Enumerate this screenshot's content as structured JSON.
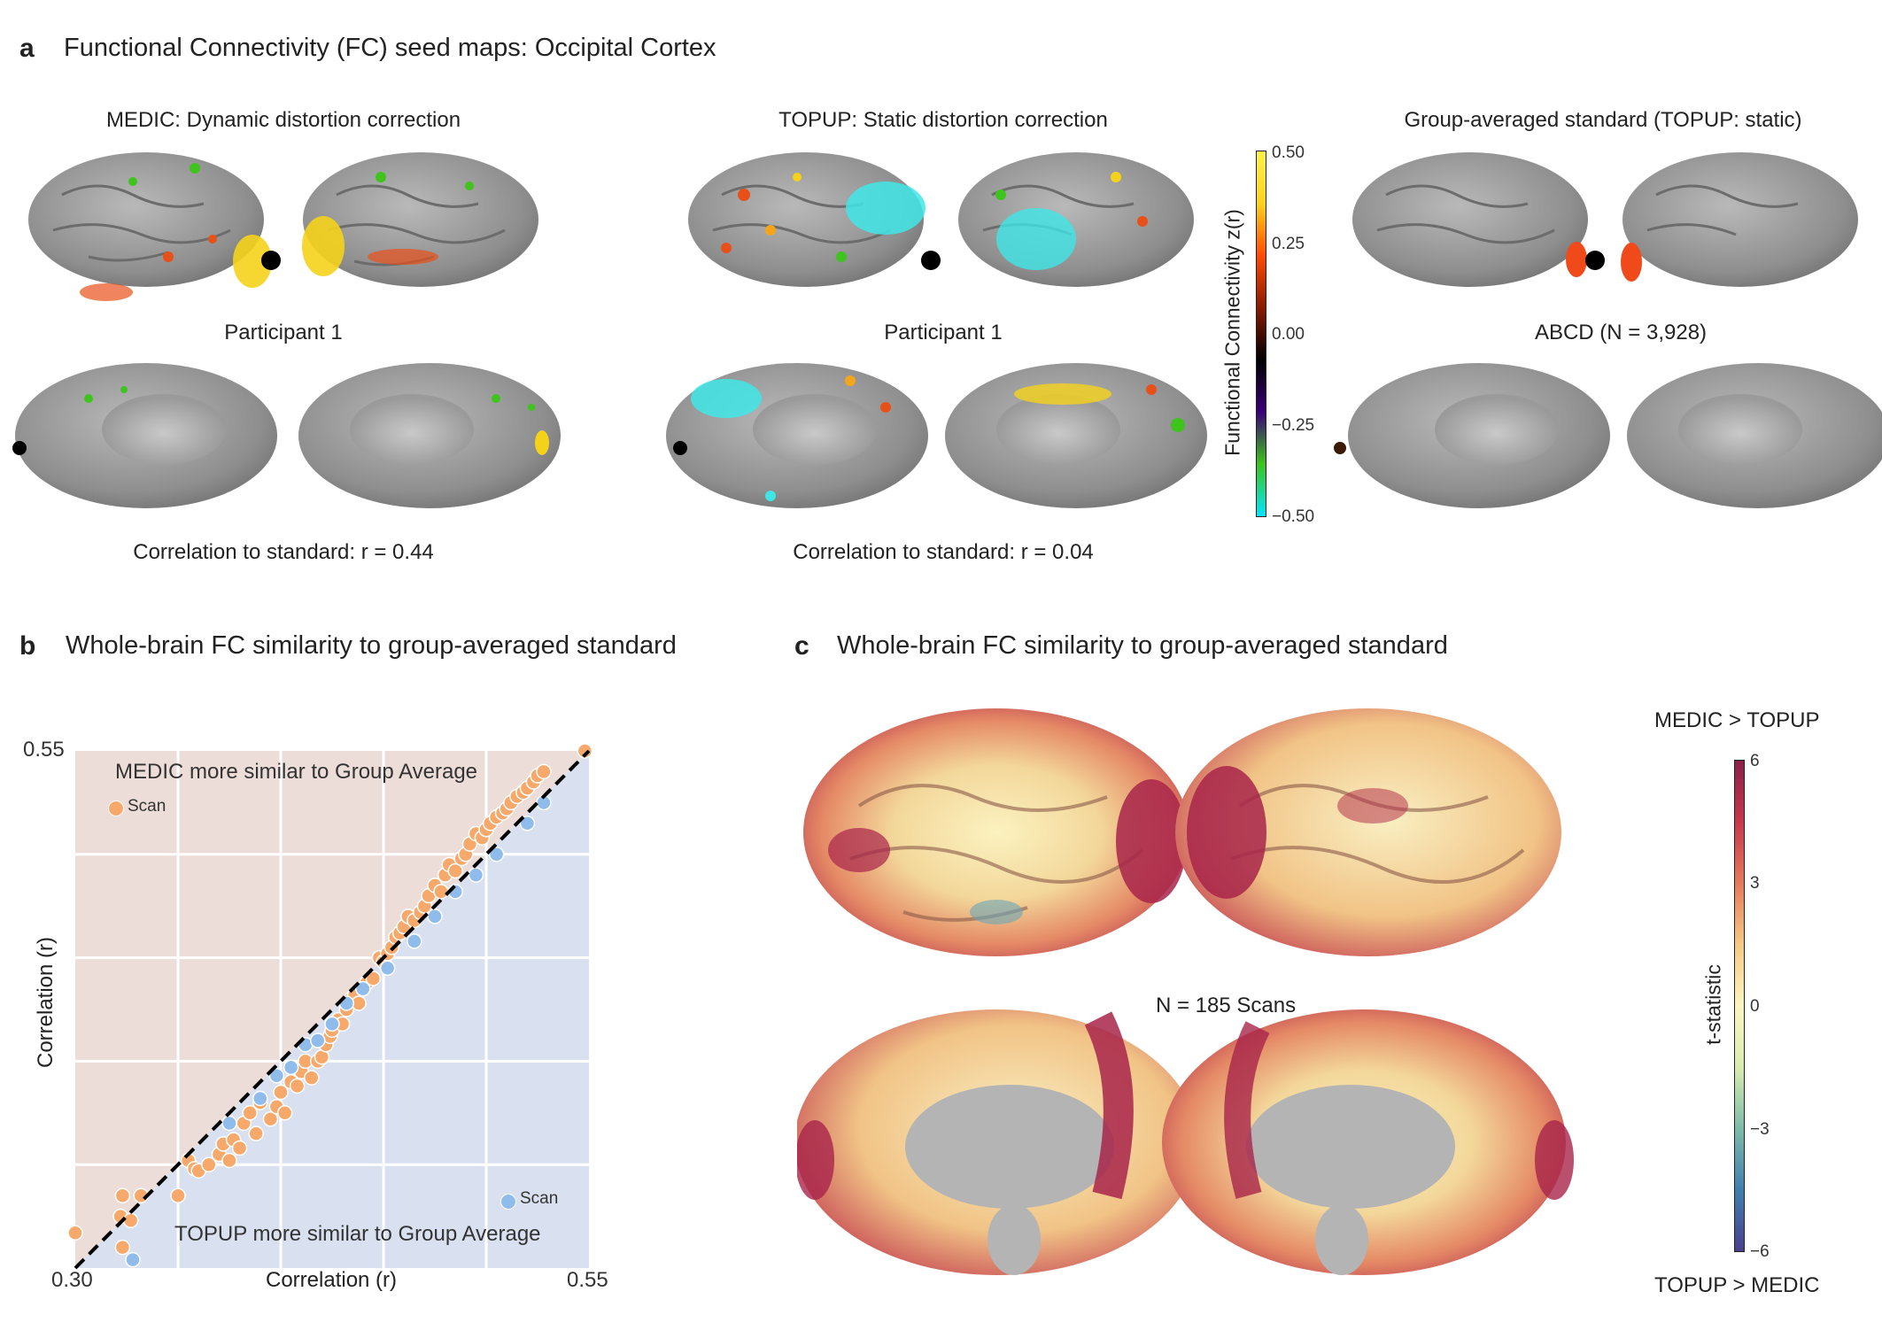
{
  "panel_a": {
    "letter": "a",
    "title": "Functional Connectivity (FC) seed maps: Occipital Cortex",
    "maps": [
      {
        "title": "MEDIC: Dynamic distortion correction",
        "label": "Participant 1",
        "caption": "Correlation to standard: r = 0.44"
      },
      {
        "title": "TOPUP: Static distortion correction",
        "label": "Participant 1",
        "caption": "Correlation to standard: r = 0.04"
      },
      {
        "title": "Group-averaged standard (TOPUP: static)",
        "label": "ABCD (N = 3,928)",
        "caption": ""
      }
    ],
    "colorbar": {
      "label": "Functional Connectivity z(r)",
      "ticks": [
        "0.50",
        "0.25",
        "0.00",
        "−0.25",
        "−0.50"
      ],
      "colors": [
        "#00e5ff",
        "#3ec41c",
        "#3a007a",
        "#000000",
        "#8a1a00",
        "#ff4a00",
        "#ffd21a",
        "#fff24a"
      ]
    }
  },
  "panel_b": {
    "letter": "b",
    "title": "Whole-brain FC similarity to group-averaged standard",
    "upper_label": "MEDIC more similar to Group Average",
    "lower_label": "TOPUP more similar to Group Average",
    "legend_upper": "Scan",
    "legend_lower": "Scan",
    "ytick_top": "0.55",
    "xtick_left": "0.30",
    "xtick_right": "0.55",
    "colors": {
      "medic": "#f7a96b",
      "topup": "#8fbcea",
      "upper_bg": "#ecddd8",
      "lower_bg": "#d9e0ef"
    }
  },
  "chart_data": {
    "type": "scatter",
    "title": "Whole-brain FC similarity to group-averaged standard",
    "xlabel": "Correlation (r)",
    "ylabel": "Correlation (r)",
    "xlim": [
      0.3,
      0.55
    ],
    "ylim": [
      0.3,
      0.55
    ],
    "grid": true,
    "series": [
      {
        "name": "Scan",
        "color": "#f7a96b",
        "points": [
          [
            0.3,
            0.317
          ],
          [
            0.322,
            0.325
          ],
          [
            0.323,
            0.31
          ],
          [
            0.327,
            0.323
          ],
          [
            0.323,
            0.335
          ],
          [
            0.332,
            0.335
          ],
          [
            0.35,
            0.335
          ],
          [
            0.355,
            0.352
          ],
          [
            0.358,
            0.348
          ],
          [
            0.36,
            0.347
          ],
          [
            0.365,
            0.35
          ],
          [
            0.37,
            0.355
          ],
          [
            0.372,
            0.36
          ],
          [
            0.375,
            0.352
          ],
          [
            0.377,
            0.362
          ],
          [
            0.38,
            0.358
          ],
          [
            0.382,
            0.37
          ],
          [
            0.385,
            0.375
          ],
          [
            0.388,
            0.365
          ],
          [
            0.39,
            0.38
          ],
          [
            0.395,
            0.372
          ],
          [
            0.398,
            0.378
          ],
          [
            0.4,
            0.385
          ],
          [
            0.402,
            0.375
          ],
          [
            0.405,
            0.39
          ],
          [
            0.408,
            0.388
          ],
          [
            0.41,
            0.395
          ],
          [
            0.412,
            0.4
          ],
          [
            0.415,
            0.392
          ],
          [
            0.418,
            0.4
          ],
          [
            0.42,
            0.402
          ],
          [
            0.422,
            0.408
          ],
          [
            0.424,
            0.412
          ],
          [
            0.425,
            0.415
          ],
          [
            0.428,
            0.42
          ],
          [
            0.43,
            0.418
          ],
          [
            0.432,
            0.425
          ],
          [
            0.434,
            0.43
          ],
          [
            0.436,
            0.432
          ],
          [
            0.438,
            0.428
          ],
          [
            0.44,
            0.435
          ],
          [
            0.442,
            0.438
          ],
          [
            0.445,
            0.44
          ],
          [
            0.448,
            0.45
          ],
          [
            0.45,
            0.448
          ],
          [
            0.452,
            0.452
          ],
          [
            0.454,
            0.455
          ],
          [
            0.456,
            0.46
          ],
          [
            0.458,
            0.462
          ],
          [
            0.46,
            0.465
          ],
          [
            0.462,
            0.47
          ],
          [
            0.465,
            0.468
          ],
          [
            0.468,
            0.472
          ],
          [
            0.47,
            0.475
          ],
          [
            0.472,
            0.48
          ],
          [
            0.475,
            0.485
          ],
          [
            0.478,
            0.482
          ],
          [
            0.48,
            0.49
          ],
          [
            0.482,
            0.495
          ],
          [
            0.485,
            0.492
          ],
          [
            0.488,
            0.498
          ],
          [
            0.49,
            0.5
          ],
          [
            0.492,
            0.505
          ],
          [
            0.495,
            0.51
          ],
          [
            0.498,
            0.508
          ],
          [
            0.5,
            0.512
          ],
          [
            0.502,
            0.515
          ],
          [
            0.505,
            0.518
          ],
          [
            0.508,
            0.52
          ],
          [
            0.51,
            0.522
          ],
          [
            0.512,
            0.525
          ],
          [
            0.515,
            0.528
          ],
          [
            0.518,
            0.53
          ],
          [
            0.52,
            0.532
          ],
          [
            0.523,
            0.535
          ],
          [
            0.525,
            0.538
          ],
          [
            0.528,
            0.54
          ],
          [
            0.548,
            0.55
          ]
        ]
      },
      {
        "name": "Scan",
        "color": "#8fbcea",
        "points": [
          [
            0.328,
            0.304
          ],
          [
            0.375,
            0.37
          ],
          [
            0.39,
            0.382
          ],
          [
            0.398,
            0.393
          ],
          [
            0.405,
            0.397
          ],
          [
            0.412,
            0.408
          ],
          [
            0.418,
            0.41
          ],
          [
            0.425,
            0.418
          ],
          [
            0.432,
            0.428
          ],
          [
            0.44,
            0.435
          ],
          [
            0.452,
            0.445
          ],
          [
            0.465,
            0.458
          ],
          [
            0.475,
            0.47
          ],
          [
            0.485,
            0.482
          ],
          [
            0.495,
            0.49
          ],
          [
            0.505,
            0.5
          ],
          [
            0.52,
            0.515
          ],
          [
            0.528,
            0.525
          ]
        ]
      }
    ]
  },
  "panel_c": {
    "letter": "c",
    "title": "Whole-brain FC similarity to group-averaged standard",
    "center_label": "N = 185 Scans",
    "top_label": "MEDIC > TOPUP",
    "bottom_label": "TOPUP > MEDIC",
    "colorbar": {
      "label": "t-statistic",
      "ticks": [
        "6",
        "3",
        "0",
        "−3",
        "−6"
      ],
      "colors": [
        "#4a3f8f",
        "#3f7fb0",
        "#7dbba8",
        "#d9ecb0",
        "#fbf5c0",
        "#f6c985",
        "#e57a5a",
        "#c8384c",
        "#8c1f4a"
      ]
    }
  }
}
